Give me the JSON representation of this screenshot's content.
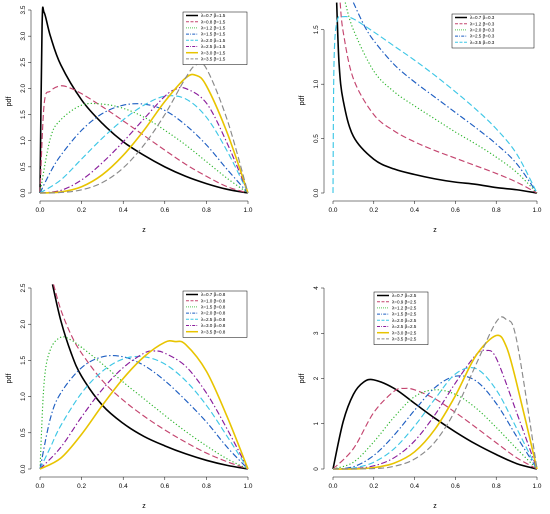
{
  "chart_data": [
    {
      "type": "line",
      "xlabel": "z",
      "ylabel": "pdf",
      "xlim": [
        0,
        1
      ],
      "ylim": [
        0,
        3.5
      ],
      "xticks": [
        "0.0",
        "0.2",
        "0.4",
        "0.6",
        "0.8",
        "1.0"
      ],
      "yticks": [
        "0.0",
        "0.5",
        "1.0",
        "1.5",
        "2.0",
        "2.5",
        "3.0",
        "3.5"
      ],
      "legend_position": "top-right",
      "series": [
        {
          "name": "λ=0.7 β=1.5",
          "color": "#000000",
          "dash": "solid",
          "x": [
            0.0,
            0.01,
            0.02,
            0.05,
            0.1,
            0.2,
            0.3,
            0.4,
            0.5,
            0.6,
            0.7,
            0.8,
            0.9,
            1.0
          ],
          "y": [
            0.0,
            3.2,
            3.45,
            3.0,
            2.45,
            1.78,
            1.33,
            0.98,
            0.72,
            0.5,
            0.32,
            0.18,
            0.07,
            0.0
          ]
        },
        {
          "name": "λ=0.8 β=1.5",
          "color": "#c4456f",
          "dash": "long-dash",
          "x": [
            0.0,
            0.02,
            0.05,
            0.1,
            0.15,
            0.2,
            0.3,
            0.4,
            0.5,
            0.6,
            0.7,
            0.8,
            0.9,
            1.0
          ],
          "y": [
            0.0,
            1.7,
            1.95,
            2.05,
            2.0,
            1.9,
            1.65,
            1.38,
            1.1,
            0.82,
            0.55,
            0.32,
            0.12,
            0.0
          ]
        },
        {
          "name": "λ=1.2 β=1.5",
          "color": "#2bb52b",
          "dash": "dot",
          "x": [
            0.0,
            0.05,
            0.1,
            0.2,
            0.3,
            0.4,
            0.5,
            0.6,
            0.7,
            0.8,
            0.9,
            1.0
          ],
          "y": [
            0.0,
            1.05,
            1.4,
            1.68,
            1.7,
            1.62,
            1.45,
            1.2,
            0.92,
            0.6,
            0.28,
            0.0
          ]
        },
        {
          "name": "λ=1.5 β=1.5",
          "color": "#1f5fc2",
          "dash": "dot-dash",
          "x": [
            0.0,
            0.05,
            0.1,
            0.2,
            0.3,
            0.4,
            0.5,
            0.6,
            0.7,
            0.8,
            0.9,
            1.0
          ],
          "y": [
            0.0,
            0.4,
            0.72,
            1.2,
            1.52,
            1.68,
            1.7,
            1.58,
            1.3,
            0.92,
            0.45,
            0.0
          ]
        },
        {
          "name": "λ=2.0 β=1.5",
          "color": "#3ec7e6",
          "dash": "long-dash",
          "x": [
            0.0,
            0.1,
            0.2,
            0.3,
            0.4,
            0.5,
            0.6,
            0.7,
            0.8,
            0.9,
            1.0
          ],
          "y": [
            0.0,
            0.25,
            0.65,
            1.05,
            1.4,
            1.68,
            1.85,
            1.8,
            1.45,
            0.8,
            0.0
          ]
        },
        {
          "name": "λ=2.5 β=1.5",
          "color": "#8a1d9c",
          "dash": "dot-dash",
          "x": [
            0.0,
            0.1,
            0.2,
            0.3,
            0.4,
            0.5,
            0.6,
            0.65,
            0.7,
            0.8,
            0.9,
            1.0
          ],
          "y": [
            0.0,
            0.05,
            0.25,
            0.58,
            0.98,
            1.42,
            1.85,
            1.98,
            2.0,
            1.72,
            0.95,
            0.0
          ]
        },
        {
          "name": "λ=3.0 β=1.5",
          "color": "#e8c400",
          "dash": "solid",
          "x": [
            0.0,
            0.1,
            0.2,
            0.3,
            0.4,
            0.5,
            0.6,
            0.7,
            0.75,
            0.8,
            0.9,
            1.0
          ],
          "y": [
            0.0,
            0.02,
            0.12,
            0.35,
            0.72,
            1.2,
            1.75,
            2.2,
            2.25,
            2.05,
            1.15,
            0.0
          ]
        },
        {
          "name": "λ=3.5 β=1.5",
          "color": "#8a8a8a",
          "dash": "long-dash",
          "x": [
            0.0,
            0.1,
            0.2,
            0.3,
            0.4,
            0.5,
            0.6,
            0.7,
            0.75,
            0.8,
            0.9,
            1.0
          ],
          "y": [
            0.0,
            0.01,
            0.06,
            0.2,
            0.48,
            0.92,
            1.5,
            2.2,
            2.45,
            2.38,
            1.4,
            0.0
          ]
        }
      ]
    },
    {
      "type": "line",
      "xlabel": "z",
      "ylabel": "pdf",
      "xlim": [
        0,
        1
      ],
      "ylim": [
        0,
        1.7
      ],
      "xticks": [
        "0.0",
        "0.2",
        "0.4",
        "0.6",
        "0.8",
        "1.0"
      ],
      "yticks": [
        "0.0",
        "0.5",
        "1.0",
        "1.5"
      ],
      "legend_position": "top-right",
      "series": [
        {
          "name": "λ=0.7 β=0.3",
          "color": "#000000",
          "dash": "solid",
          "x": [
            0.018,
            0.03,
            0.05,
            0.1,
            0.2,
            0.3,
            0.4,
            0.5,
            0.6,
            0.7,
            0.8,
            0.9,
            1.0
          ],
          "y": [
            1.75,
            1.18,
            0.85,
            0.52,
            0.31,
            0.22,
            0.17,
            0.13,
            0.1,
            0.08,
            0.05,
            0.03,
            0.0
          ]
        },
        {
          "name": "λ=1.2 β=0.3",
          "color": "#c4456f",
          "dash": "long-dash",
          "x": [
            0.035,
            0.05,
            0.1,
            0.2,
            0.3,
            0.4,
            0.5,
            0.6,
            0.7,
            0.8,
            0.9,
            1.0
          ],
          "y": [
            1.75,
            1.48,
            1.05,
            0.72,
            0.57,
            0.47,
            0.39,
            0.32,
            0.25,
            0.18,
            0.1,
            0.0
          ]
        },
        {
          "name": "λ=2.0 β=0.3",
          "color": "#2bb52b",
          "dash": "dot",
          "x": [
            0.06,
            0.1,
            0.2,
            0.3,
            0.4,
            0.5,
            0.6,
            0.7,
            0.8,
            0.9,
            1.0
          ],
          "y": [
            1.75,
            1.5,
            1.12,
            0.93,
            0.8,
            0.68,
            0.56,
            0.45,
            0.33,
            0.19,
            0.0
          ]
        },
        {
          "name": "λ=2.5 β=0.3",
          "color": "#1f5fc2",
          "dash": "dot-dash",
          "x": [
            0.1,
            0.15,
            0.2,
            0.3,
            0.4,
            0.5,
            0.6,
            0.7,
            0.8,
            0.9,
            1.0
          ],
          "y": [
            1.75,
            1.55,
            1.4,
            1.18,
            1.02,
            0.88,
            0.74,
            0.6,
            0.45,
            0.27,
            0.0
          ]
        },
        {
          "name": "λ=3.5 β=0.3",
          "color": "#3ec7e6",
          "dash": "long-dash",
          "x": [
            0.0,
            0.005,
            0.02,
            0.05,
            0.1,
            0.2,
            0.3,
            0.4,
            0.5,
            0.6,
            0.7,
            0.8,
            0.9,
            1.0
          ],
          "y": [
            0.0,
            1.2,
            1.58,
            1.62,
            1.6,
            1.48,
            1.35,
            1.22,
            1.08,
            0.93,
            0.77,
            0.59,
            0.36,
            0.0
          ]
        }
      ]
    },
    {
      "type": "line",
      "xlabel": "z",
      "ylabel": "pdf",
      "xlim": [
        0,
        1
      ],
      "ylim": [
        0,
        2.5
      ],
      "xticks": [
        "0.0",
        "0.2",
        "0.4",
        "0.6",
        "0.8",
        "1.0"
      ],
      "yticks": [
        "0.0",
        "0.5",
        "1.0",
        "1.5",
        "2.0",
        "2.5"
      ],
      "legend_position": "top-right",
      "series": [
        {
          "name": "λ=0.7 β=0.8",
          "color": "#000000",
          "dash": "solid",
          "x": [
            0.06,
            0.1,
            0.15,
            0.2,
            0.3,
            0.4,
            0.5,
            0.6,
            0.7,
            0.8,
            0.9,
            1.0
          ],
          "y": [
            2.55,
            2.05,
            1.6,
            1.28,
            0.88,
            0.63,
            0.45,
            0.32,
            0.21,
            0.12,
            0.05,
            0.0
          ]
        },
        {
          "name": "λ=1.0 β=0.8",
          "color": "#c4456f",
          "dash": "long-dash",
          "x": [
            0.065,
            0.1,
            0.15,
            0.2,
            0.3,
            0.4,
            0.5,
            0.6,
            0.7,
            0.8,
            0.9,
            1.0
          ],
          "y": [
            2.55,
            2.2,
            1.85,
            1.6,
            1.22,
            0.95,
            0.73,
            0.54,
            0.37,
            0.22,
            0.1,
            0.0
          ]
        },
        {
          "name": "λ=1.5 β=0.8",
          "color": "#2bb52b",
          "dash": "dot",
          "x": [
            0.0,
            0.02,
            0.05,
            0.1,
            0.15,
            0.2,
            0.3,
            0.4,
            0.5,
            0.6,
            0.7,
            0.8,
            0.9,
            1.0
          ],
          "y": [
            0.0,
            1.2,
            1.65,
            1.82,
            1.78,
            1.68,
            1.45,
            1.2,
            0.97,
            0.74,
            0.52,
            0.32,
            0.14,
            0.0
          ]
        },
        {
          "name": "λ=2.0 β=0.8",
          "color": "#1f5fc2",
          "dash": "dot-dash",
          "x": [
            0.0,
            0.05,
            0.1,
            0.2,
            0.3,
            0.4,
            0.5,
            0.6,
            0.7,
            0.8,
            0.9,
            1.0
          ],
          "y": [
            0.0,
            0.7,
            1.05,
            1.4,
            1.55,
            1.55,
            1.43,
            1.22,
            0.95,
            0.65,
            0.3,
            0.0
          ]
        },
        {
          "name": "λ=2.5 β=0.8",
          "color": "#3ec7e6",
          "dash": "long-dash",
          "x": [
            0.0,
            0.05,
            0.1,
            0.2,
            0.3,
            0.4,
            0.5,
            0.6,
            0.7,
            0.8,
            0.9,
            1.0
          ],
          "y": [
            0.0,
            0.3,
            0.6,
            1.05,
            1.35,
            1.52,
            1.55,
            1.45,
            1.22,
            0.88,
            0.45,
            0.0
          ]
        },
        {
          "name": "λ=3.0 β=0.8",
          "color": "#8a1d9c",
          "dash": "dot-dash",
          "x": [
            0.0,
            0.1,
            0.2,
            0.3,
            0.4,
            0.5,
            0.55,
            0.6,
            0.7,
            0.8,
            0.9,
            1.0
          ],
          "y": [
            0.0,
            0.3,
            0.72,
            1.1,
            1.4,
            1.6,
            1.63,
            1.6,
            1.42,
            1.05,
            0.55,
            0.0
          ]
        },
        {
          "name": "λ=3.5 β=0.8",
          "color": "#e8c400",
          "dash": "solid",
          "x": [
            0.0,
            0.1,
            0.2,
            0.3,
            0.4,
            0.5,
            0.6,
            0.65,
            0.7,
            0.8,
            0.9,
            1.0
          ],
          "y": [
            0.0,
            0.15,
            0.48,
            0.88,
            1.25,
            1.55,
            1.75,
            1.76,
            1.72,
            1.35,
            0.72,
            0.0
          ]
        }
      ]
    },
    {
      "type": "line",
      "xlabel": "z",
      "ylabel": "pdf",
      "xlim": [
        0,
        1
      ],
      "ylim": [
        0,
        4
      ],
      "xticks": [
        "0.0",
        "0.2",
        "0.4",
        "0.6",
        "0.8",
        "1.0"
      ],
      "yticks": [
        "0",
        "1",
        "2",
        "3",
        "4"
      ],
      "legend_position": "top-left",
      "series": [
        {
          "name": "λ=0.7 β=2.5",
          "color": "#000000",
          "dash": "solid",
          "x": [
            0.0,
            0.05,
            0.1,
            0.15,
            0.2,
            0.3,
            0.4,
            0.5,
            0.6,
            0.7,
            0.8,
            0.9,
            1.0
          ],
          "y": [
            0.0,
            1.05,
            1.65,
            1.92,
            1.97,
            1.78,
            1.45,
            1.12,
            0.82,
            0.55,
            0.32,
            0.12,
            0.0
          ]
        },
        {
          "name": "λ=0.9 β=2.5",
          "color": "#c4456f",
          "dash": "long-dash",
          "x": [
            0.0,
            0.1,
            0.2,
            0.3,
            0.35,
            0.4,
            0.5,
            0.6,
            0.7,
            0.8,
            0.9,
            1.0
          ],
          "y": [
            0.0,
            0.45,
            1.25,
            1.72,
            1.78,
            1.75,
            1.55,
            1.25,
            0.92,
            0.58,
            0.25,
            0.0
          ]
        },
        {
          "name": "λ=1.2 β=2.5",
          "color": "#2bb52b",
          "dash": "dot",
          "x": [
            0.0,
            0.1,
            0.2,
            0.3,
            0.4,
            0.5,
            0.6,
            0.7,
            0.8,
            0.9,
            1.0
          ],
          "y": [
            0.0,
            0.15,
            0.6,
            1.15,
            1.6,
            1.75,
            1.65,
            1.35,
            0.92,
            0.45,
            0.0
          ]
        },
        {
          "name": "λ=1.5 β=2.5",
          "color": "#1f5fc2",
          "dash": "dot-dash",
          "x": [
            0.0,
            0.1,
            0.2,
            0.3,
            0.4,
            0.5,
            0.6,
            0.7,
            0.8,
            0.9,
            1.0
          ],
          "y": [
            0.0,
            0.05,
            0.3,
            0.75,
            1.3,
            1.8,
            2.05,
            1.95,
            1.45,
            0.72,
            0.0
          ]
        },
        {
          "name": "λ=2.0 β=2.5",
          "color": "#3ec7e6",
          "dash": "long-dash",
          "x": [
            0.0,
            0.1,
            0.2,
            0.3,
            0.4,
            0.5,
            0.6,
            0.7,
            0.8,
            0.9,
            1.0
          ],
          "y": [
            0.0,
            0.02,
            0.15,
            0.45,
            0.95,
            1.55,
            2.1,
            2.22,
            1.75,
            0.9,
            0.0
          ]
        },
        {
          "name": "λ=2.5 β=2.5",
          "color": "#8a1d9c",
          "dash": "dot-dash",
          "x": [
            0.0,
            0.1,
            0.2,
            0.3,
            0.4,
            0.5,
            0.6,
            0.7,
            0.75,
            0.8,
            0.9,
            1.0
          ],
          "y": [
            0.0,
            0.01,
            0.07,
            0.25,
            0.62,
            1.2,
            1.9,
            2.52,
            2.62,
            2.45,
            1.25,
            0.0
          ]
        },
        {
          "name": "λ=3.0 β=2.5",
          "color": "#e8c400",
          "dash": "solid",
          "x": [
            0.0,
            0.1,
            0.2,
            0.3,
            0.4,
            0.5,
            0.6,
            0.7,
            0.8,
            0.85,
            0.9,
            1.0
          ],
          "y": [
            0.0,
            0.0,
            0.03,
            0.13,
            0.38,
            0.88,
            1.62,
            2.5,
            2.95,
            2.7,
            1.9,
            0.0
          ]
        },
        {
          "name": "λ=3.5 β=2.5",
          "color": "#8a8a8a",
          "dash": "long-dash",
          "x": [
            0.0,
            0.2,
            0.3,
            0.4,
            0.5,
            0.6,
            0.7,
            0.8,
            0.85,
            0.9,
            1.0
          ],
          "y": [
            0.0,
            0.01,
            0.06,
            0.22,
            0.6,
            1.3,
            2.3,
            3.25,
            3.3,
            2.85,
            0.0
          ]
        }
      ]
    }
  ]
}
